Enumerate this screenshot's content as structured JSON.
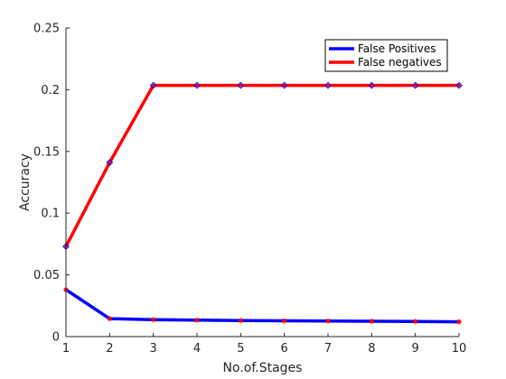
{
  "chart_data": {
    "type": "line",
    "title": "",
    "xlabel": "No.of.Stages",
    "ylabel": "Accuracy",
    "x": [
      1,
      2,
      3,
      4,
      5,
      6,
      7,
      8,
      9,
      10
    ],
    "xlim": [
      1,
      10
    ],
    "ylim": [
      0,
      0.25
    ],
    "xticks": [
      "1",
      "2",
      "3",
      "4",
      "5",
      "6",
      "7",
      "8",
      "9",
      "10"
    ],
    "yticks": [
      0,
      0.05,
      0.1,
      0.15,
      0.2,
      0.25
    ],
    "ytick_labels": [
      "0",
      "0.05",
      "0.1",
      "0.15",
      "0.2",
      "0.25"
    ],
    "grid": false,
    "legend_position": "top-right",
    "series": [
      {
        "name": "False Positives",
        "color": "#0000ff",
        "marker": "asterisk",
        "marker_color": "#ff0000",
        "values": [
          0.038,
          0.0145,
          0.0137,
          0.0133,
          0.013,
          0.0128,
          0.0126,
          0.0124,
          0.0122,
          0.012
        ]
      },
      {
        "name": "False negatives",
        "color": "#ff0000",
        "marker": "diamond",
        "marker_color": "#0000ff",
        "values": [
          0.073,
          0.141,
          0.2035,
          0.2035,
          0.2035,
          0.2035,
          0.2035,
          0.2035,
          0.2035,
          0.2035
        ]
      }
    ]
  }
}
